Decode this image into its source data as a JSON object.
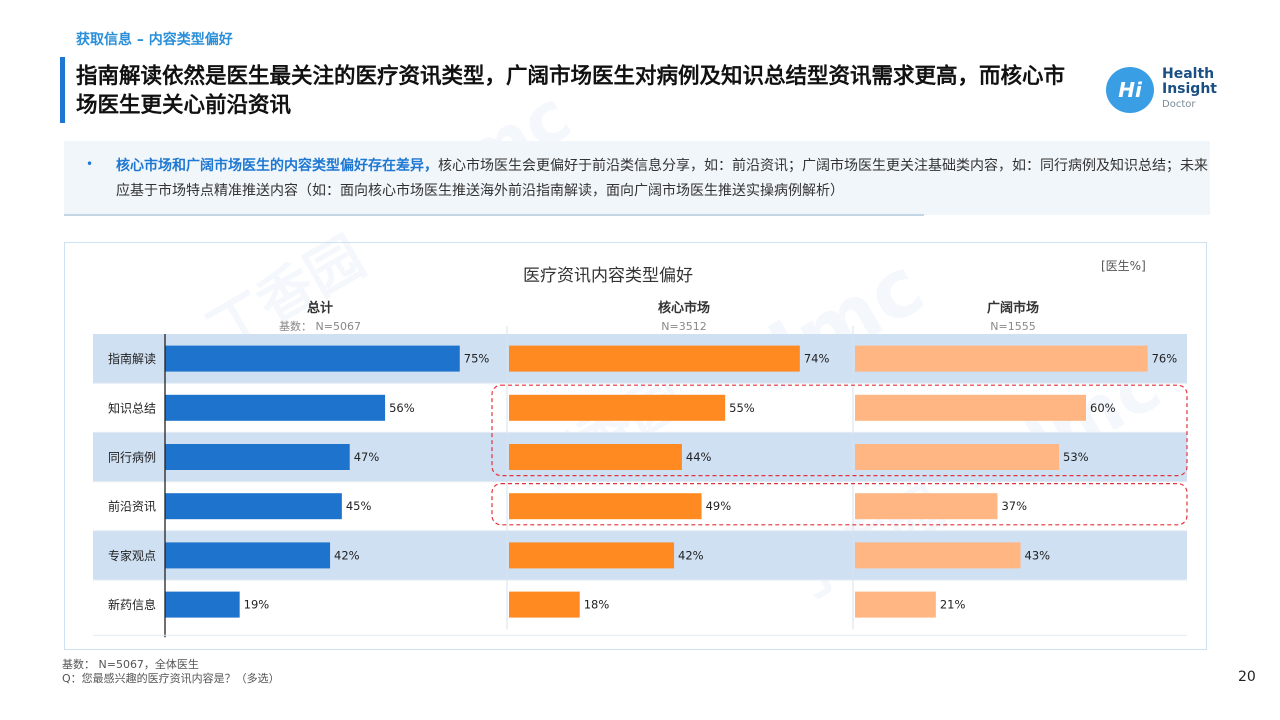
{
  "section_label": "获取信息 – 内容类型偏好",
  "title": "指南解读依然是医生最关注的医疗资讯类型，广阔市场医生对病例及知识总结型资讯需求更高，而核心市场医生更关心前沿资讯",
  "logo": {
    "mark": "Hi",
    "line1": "Health",
    "line2": "Insight",
    "line3": "Doctor"
  },
  "summary": {
    "bullet": "•",
    "emphasis": "核心市场和广阔市场医生的内容类型偏好存在差异，",
    "text": "核心市场医生会更偏好于前沿类信息分享，如：前沿资讯；广阔市场医生更关注基础类内容，如：同行病例及知识总结；未来应基于市场特点精准推送内容（如：面向核心市场医生推送海外前沿指南解读，面向广阔市场医生推送实操病例解析）"
  },
  "watermarks": [
    "丁香园",
    "dmc"
  ],
  "chart_data": {
    "type": "bar",
    "title": "医疗资讯内容类型偏好",
    "unit": "[医生%]",
    "categories": [
      "指南解读",
      "知识总结",
      "同行病例",
      "前沿资讯",
      "专家观点",
      "新药信息"
    ],
    "series": [
      {
        "name": "总计",
        "base": "基数：  N=5067",
        "color": "#1e74cc",
        "values": [
          75,
          56,
          47,
          45,
          42,
          19
        ]
      },
      {
        "name": "核心市场",
        "base": "N=3512",
        "color": "#ff8a22",
        "values": [
          74,
          55,
          44,
          49,
          42,
          18
        ]
      },
      {
        "name": "广阔市场",
        "base": "N=1555",
        "color": "#ffb682",
        "values": [
          76,
          60,
          53,
          37,
          43,
          21
        ]
      }
    ],
    "value_suffix": "%",
    "xlim": [
      0,
      100
    ],
    "highlighted_rows": [
      [
        1,
        2
      ],
      [
        3,
        3
      ]
    ],
    "band_color": "#cfe0f3"
  },
  "footnote": {
    "line1": "基数：  N=5067，全体医生",
    "line2": "Q：您最感兴趣的医疗资讯内容是？（多选）"
  },
  "page_number": "20"
}
